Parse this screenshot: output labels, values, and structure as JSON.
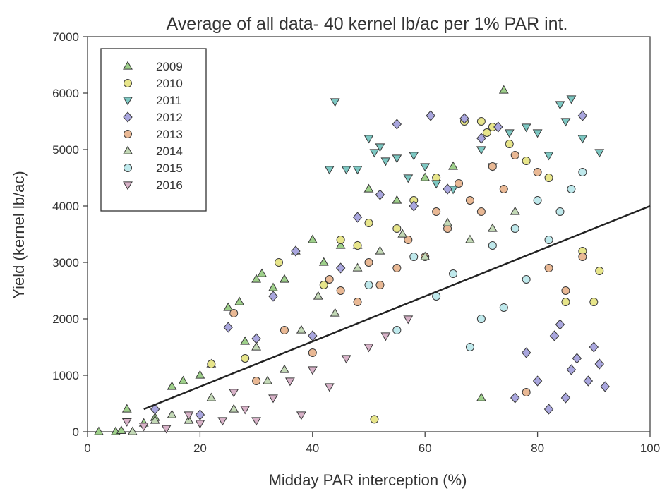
{
  "chart_data": {
    "type": "scatter",
    "title": "Average of all data- 40 kernel lb/ac per 1% PAR int.",
    "xlabel": "Midday PAR interception (%)",
    "ylabel": "Yield (kernel lb/ac)",
    "xlim": [
      0,
      100
    ],
    "ylim": [
      0,
      7000
    ],
    "x_ticks": [
      0,
      20,
      40,
      60,
      80,
      100
    ],
    "y_ticks": [
      0,
      1000,
      2000,
      3000,
      4000,
      5000,
      6000,
      7000
    ],
    "grid": false,
    "legend_position": "top-left",
    "trendline": {
      "slope": 40,
      "x0": 10,
      "x1": 100
    },
    "series": [
      {
        "name": "2009",
        "marker": "triangle-up",
        "color": "#9ed08a",
        "x": [
          2,
          5,
          6,
          7,
          10,
          12,
          15,
          17,
          20,
          22,
          25,
          27,
          28,
          30,
          31,
          33,
          35,
          37,
          40,
          42,
          45,
          48,
          50,
          55,
          60,
          65,
          70,
          74
        ],
        "y": [
          0,
          0,
          20,
          400,
          150,
          250,
          800,
          900,
          1000,
          1200,
          2200,
          2300,
          1600,
          2700,
          2800,
          2550,
          2700,
          3200,
          3400,
          3000,
          3300,
          3300,
          4300,
          4100,
          4500,
          4700,
          600,
          6050
        ]
      },
      {
        "name": "2010",
        "marker": "circle",
        "color": "#e7e58a",
        "x": [
          22,
          28,
          34,
          42,
          45,
          48,
          50,
          51,
          55,
          58,
          62,
          67,
          70,
          71,
          72,
          75,
          78,
          82,
          85,
          88,
          90,
          91
        ],
        "y": [
          1200,
          1300,
          3000,
          2600,
          3400,
          3300,
          3700,
          220,
          3600,
          4100,
          4500,
          5500,
          5500,
          5300,
          5400,
          5100,
          4800,
          4500,
          2300,
          3200,
          2300,
          2850
        ]
      },
      {
        "name": "2011",
        "marker": "triangle-down",
        "color": "#7cc7c2",
        "x": [
          43,
          44,
          46,
          48,
          50,
          51,
          52,
          53,
          55,
          57,
          58,
          60,
          62,
          65,
          70,
          72,
          75,
          78,
          80,
          82,
          84,
          85,
          86,
          88,
          91
        ],
        "y": [
          4650,
          5850,
          4650,
          4650,
          5200,
          4950,
          5050,
          4800,
          4850,
          4500,
          4900,
          4700,
          4400,
          4300,
          5000,
          4700,
          5300,
          5400,
          5300,
          4900,
          5800,
          5500,
          5900,
          5200,
          4950
        ]
      },
      {
        "name": "2012",
        "marker": "diamond",
        "color": "#a9a6de",
        "x": [
          12,
          20,
          25,
          30,
          33,
          37,
          40,
          45,
          48,
          52,
          55,
          58,
          61,
          64,
          67,
          70,
          73,
          76,
          78,
          80,
          82,
          83,
          84,
          85,
          86,
          87,
          88,
          89,
          90,
          91,
          92
        ],
        "y": [
          400,
          300,
          1850,
          1650,
          2400,
          3200,
          1700,
          2900,
          3800,
          4200,
          5450,
          4000,
          5600,
          4300,
          5550,
          5200,
          5400,
          600,
          1400,
          900,
          400,
          1700,
          1900,
          600,
          1100,
          1300,
          5600,
          900,
          1500,
          1200,
          800
        ]
      },
      {
        "name": "2013",
        "marker": "circle",
        "color": "#e9b894",
        "x": [
          26,
          30,
          35,
          40,
          43,
          45,
          48,
          50,
          52,
          55,
          57,
          60,
          62,
          64,
          66,
          68,
          70,
          72,
          74,
          76,
          78,
          80,
          82,
          85,
          88
        ],
        "y": [
          2100,
          900,
          1800,
          1400,
          2700,
          2500,
          2300,
          3000,
          2600,
          2900,
          3400,
          3100,
          3900,
          3600,
          4400,
          4100,
          3900,
          4700,
          4300,
          4900,
          700,
          4600,
          2900,
          2500,
          3100
        ]
      },
      {
        "name": "2014",
        "marker": "triangle-up",
        "color": "#c3d9b6",
        "x": [
          8,
          12,
          15,
          18,
          22,
          26,
          30,
          32,
          35,
          38,
          41,
          44,
          48,
          52,
          56,
          60,
          64,
          68,
          72,
          76
        ],
        "y": [
          0,
          200,
          300,
          200,
          600,
          400,
          1500,
          900,
          1100,
          1800,
          2400,
          2100,
          2900,
          3200,
          3500,
          3100,
          3700,
          3400,
          3600,
          3900
        ]
      },
      {
        "name": "2015",
        "marker": "circle",
        "color": "#bfe9ec",
        "x": [
          50,
          55,
          58,
          62,
          65,
          68,
          70,
          72,
          74,
          76,
          78,
          80,
          82,
          84,
          86,
          88
        ],
        "y": [
          2600,
          1800,
          3100,
          2400,
          2800,
          1500,
          2000,
          3300,
          2200,
          3600,
          2700,
          4100,
          3400,
          3900,
          4300,
          4600
        ]
      },
      {
        "name": "2016",
        "marker": "triangle-down",
        "color": "#d8b2c8",
        "x": [
          7,
          10,
          14,
          18,
          20,
          24,
          26,
          28,
          30,
          33,
          36,
          38,
          40,
          43,
          46,
          50,
          53,
          57
        ],
        "y": [
          180,
          100,
          60,
          300,
          150,
          200,
          700,
          400,
          200,
          600,
          900,
          300,
          1100,
          800,
          1300,
          1500,
          1700,
          2000
        ]
      }
    ]
  }
}
